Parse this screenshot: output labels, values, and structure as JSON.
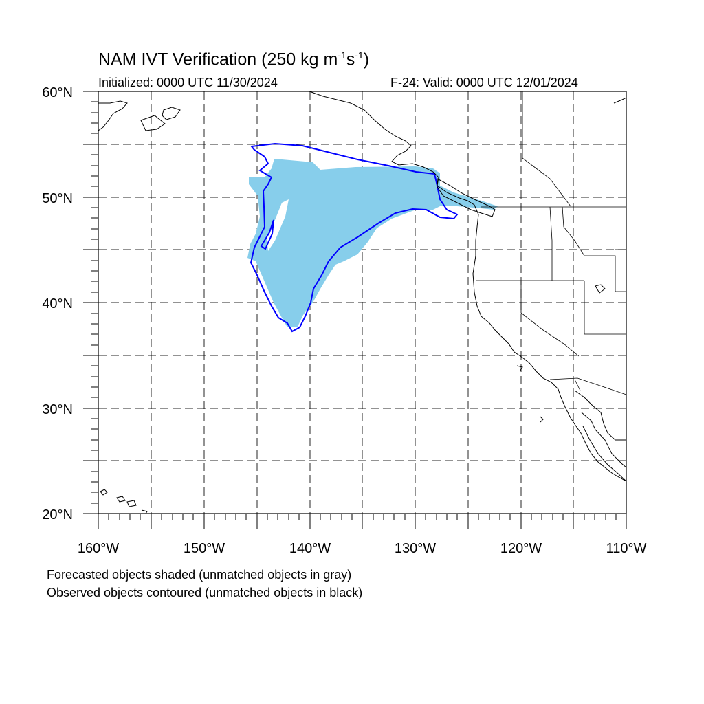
{
  "title": {
    "main": "NAM IVT Verification (250 kg m",
    "exp1": "-1",
    "mid": "s",
    "exp2": "-1",
    "end": ")"
  },
  "initialized": "Initialized: 0000 UTC 11/30/2024",
  "valid": "F-24: Valid: 0000 UTC 12/01/2024",
  "notes": [
    "Forecasted objects shaded (unmatched objects in gray)",
    "Observed objects contoured (unmatched objects in black)"
  ],
  "map": {
    "lat_labels": [
      "60°N",
      "50°N",
      "40°N",
      "30°N",
      "20°N"
    ],
    "lon_labels": [
      "160°W",
      "150°W",
      "140°W",
      "130°W",
      "120°W",
      "110°W"
    ],
    "lon_range": [
      -160,
      -110
    ],
    "lat_range": [
      20,
      60
    ],
    "grid_spacing_deg": 5,
    "forecast_color": "#87CEEB",
    "observed_color": "#0000FF",
    "coast_color": "#000000",
    "grid_style": "dashed"
  }
}
